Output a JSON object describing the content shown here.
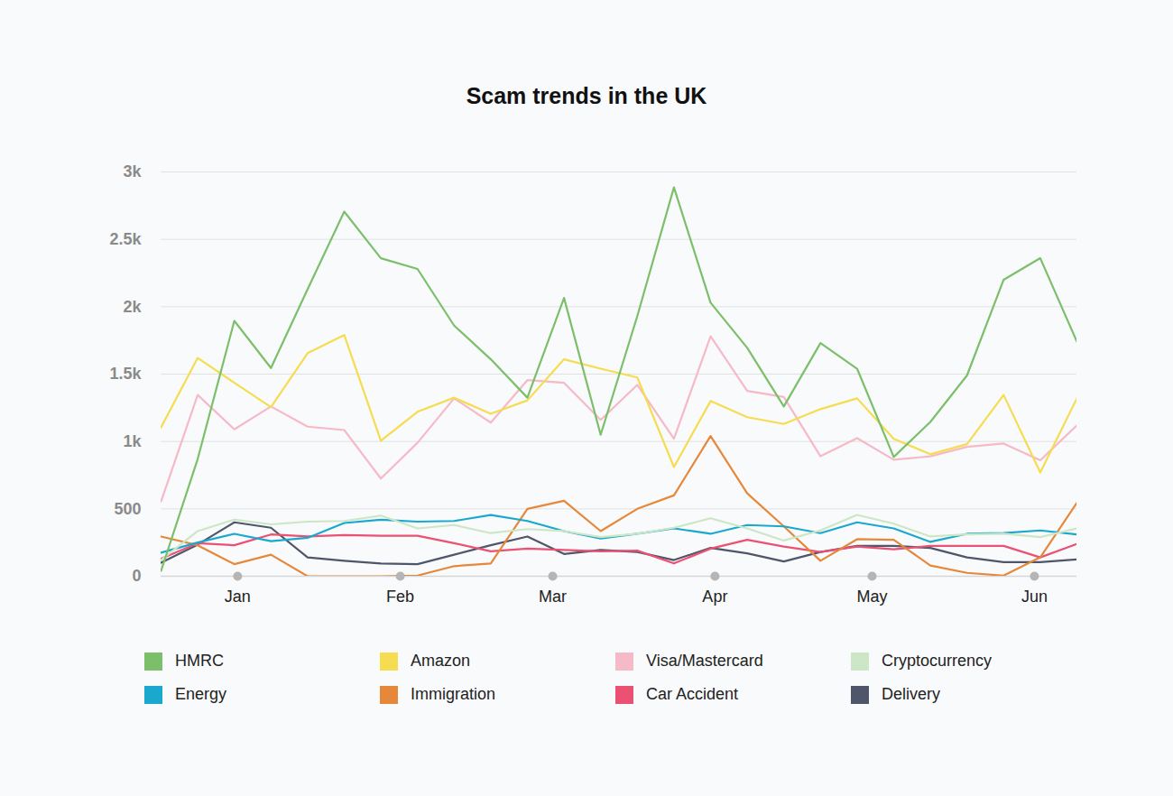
{
  "chart_data": {
    "type": "line",
    "title": "Scam trends in the UK",
    "x": [
      0,
      1,
      2,
      3,
      4,
      5,
      6,
      7,
      8,
      9,
      10,
      11,
      12,
      13,
      14,
      15,
      16,
      17,
      18,
      19,
      20,
      21,
      22,
      23,
      24,
      25
    ],
    "xlim": [
      0,
      25
    ],
    "xticks": [
      {
        "value": 2.09,
        "label": "Jan"
      },
      {
        "value": 6.53,
        "label": "Feb"
      },
      {
        "value": 10.69,
        "label": "Mar"
      },
      {
        "value": 15.12,
        "label": "Apr"
      },
      {
        "value": 19.41,
        "label": "May"
      },
      {
        "value": 23.84,
        "label": "Jun"
      }
    ],
    "ylim": [
      0,
      3000
    ],
    "yticks": [
      0,
      500,
      {
        "value": 1000,
        "label": "1k"
      },
      {
        "value": 1500,
        "label": "1.5k"
      },
      {
        "value": 2000,
        "label": "2k"
      },
      {
        "value": 2500,
        "label": "2.5k"
      },
      {
        "value": 3000,
        "label": "3k"
      }
    ],
    "grid": true,
    "legend": "bottom",
    "series": [
      {
        "name": "HMRC",
        "color": "#7cbf6b",
        "values": [
          40,
          870,
          1895,
          1545,
          2130,
          2705,
          2360,
          2280,
          1860,
          1610,
          1325,
          2065,
          1050,
          1930,
          2885,
          2030,
          1695,
          1260,
          1730,
          1540,
          885,
          1145,
          1490,
          2200,
          2360,
          1740
        ]
      },
      {
        "name": "Amazon",
        "color": "#f5dc50",
        "values": [
          1105,
          1620,
          1435,
          1255,
          1655,
          1790,
          1005,
          1220,
          1325,
          1205,
          1305,
          1610,
          1540,
          1475,
          810,
          1300,
          1180,
          1130,
          1240,
          1320,
          1020,
          905,
          980,
          1345,
          770,
          1320
        ]
      },
      {
        "name": "Visa/Mastercard",
        "color": "#f6b9c7",
        "values": [
          555,
          1345,
          1090,
          1260,
          1110,
          1085,
          725,
          990,
          1320,
          1140,
          1455,
          1435,
          1160,
          1420,
          1020,
          1780,
          1375,
          1330,
          890,
          1025,
          865,
          890,
          960,
          985,
          860,
          1120
        ]
      },
      {
        "name": "Cryptocurrency",
        "color": "#cce6c6",
        "values": [
          120,
          335,
          420,
          385,
          405,
          410,
          450,
          355,
          380,
          320,
          350,
          335,
          290,
          315,
          360,
          430,
          355,
          265,
          340,
          455,
          390,
          295,
          310,
          315,
          290,
          355
        ]
      },
      {
        "name": "Energy",
        "color": "#1aa8cf",
        "values": [
          175,
          250,
          315,
          260,
          285,
          395,
          420,
          405,
          410,
          455,
          410,
          335,
          280,
          315,
          355,
          315,
          380,
          370,
          320,
          400,
          355,
          255,
          315,
          320,
          340,
          310
        ]
      },
      {
        "name": "Immigration",
        "color": "#e6883a",
        "values": [
          295,
          230,
          90,
          160,
          0,
          0,
          0,
          5,
          75,
          95,
          500,
          560,
          335,
          500,
          600,
          1040,
          615,
          370,
          115,
          275,
          270,
          80,
          25,
          5,
          140,
          545
        ]
      },
      {
        "name": "Car Accident",
        "color": "#ea5173",
        "values": [
          130,
          245,
          230,
          310,
          295,
          305,
          300,
          300,
          245,
          185,
          205,
          195,
          185,
          190,
          95,
          205,
          270,
          220,
          180,
          220,
          200,
          225,
          225,
          225,
          140,
          240
        ]
      },
      {
        "name": "Delivery",
        "color": "#4f5669",
        "values": [
          100,
          235,
          400,
          360,
          140,
          115,
          95,
          90,
          160,
          230,
          295,
          165,
          195,
          180,
          120,
          210,
          170,
          110,
          180,
          225,
          225,
          210,
          140,
          105,
          105,
          125
        ]
      }
    ]
  }
}
